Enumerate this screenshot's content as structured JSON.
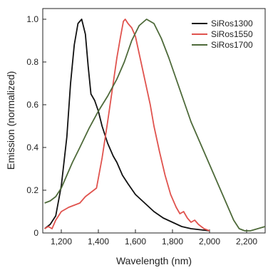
{
  "chart_data": {
    "type": "line",
    "title": "",
    "xlabel": "Wavelength (nm)",
    "ylabel": "Emission (normalized)",
    "xlim": [
      1100,
      2300
    ],
    "ylim": [
      0,
      1.05
    ],
    "grid": false,
    "legend_position": "top-right",
    "x_ticks": [
      {
        "value": 1200,
        "label": "1,200"
      },
      {
        "value": 1400,
        "label": "1,400"
      },
      {
        "value": 1600,
        "label": "1,600"
      },
      {
        "value": 1800,
        "label": "1,800"
      },
      {
        "value": 2000,
        "label": "2,000"
      },
      {
        "value": 2200,
        "label": "2,200"
      }
    ],
    "y_ticks": [
      {
        "value": 0,
        "label": "0"
      },
      {
        "value": 0.2,
        "label": "0.2"
      },
      {
        "value": 0.4,
        "label": "0.4"
      },
      {
        "value": 0.6,
        "label": "0.6"
      },
      {
        "value": 0.8,
        "label": "0.8"
      },
      {
        "value": 1.0,
        "label": "1.0"
      }
    ],
    "series": [
      {
        "name": "SiRos1300",
        "color": "#111111",
        "points": [
          [
            1110,
            0.02
          ],
          [
            1140,
            0.04
          ],
          [
            1170,
            0.08
          ],
          [
            1200,
            0.22
          ],
          [
            1230,
            0.45
          ],
          [
            1250,
            0.7
          ],
          [
            1270,
            0.88
          ],
          [
            1290,
            0.98
          ],
          [
            1310,
            1.0
          ],
          [
            1330,
            0.93
          ],
          [
            1345,
            0.78
          ],
          [
            1360,
            0.65
          ],
          [
            1380,
            0.62
          ],
          [
            1400,
            0.57
          ],
          [
            1420,
            0.5
          ],
          [
            1450,
            0.42
          ],
          [
            1480,
            0.36
          ],
          [
            1500,
            0.33
          ],
          [
            1530,
            0.27
          ],
          [
            1560,
            0.23
          ],
          [
            1600,
            0.18
          ],
          [
            1650,
            0.14
          ],
          [
            1700,
            0.1
          ],
          [
            1750,
            0.07
          ],
          [
            1800,
            0.05
          ],
          [
            1850,
            0.03
          ],
          [
            1900,
            0.02
          ],
          [
            1950,
            0.015
          ],
          [
            2000,
            0.01
          ]
        ]
      },
      {
        "name": "SiRos1550",
        "color": "#e0534e",
        "points": [
          [
            1110,
            0.02
          ],
          [
            1130,
            0.03
          ],
          [
            1150,
            0.02
          ],
          [
            1170,
            0.06
          ],
          [
            1200,
            0.1
          ],
          [
            1240,
            0.12
          ],
          [
            1270,
            0.13
          ],
          [
            1300,
            0.14
          ],
          [
            1330,
            0.17
          ],
          [
            1360,
            0.19
          ],
          [
            1390,
            0.21
          ],
          [
            1420,
            0.35
          ],
          [
            1450,
            0.52
          ],
          [
            1480,
            0.7
          ],
          [
            1500,
            0.82
          ],
          [
            1520,
            0.92
          ],
          [
            1535,
            0.99
          ],
          [
            1545,
            1.0
          ],
          [
            1560,
            0.98
          ],
          [
            1580,
            0.96
          ],
          [
            1600,
            0.92
          ],
          [
            1620,
            0.84
          ],
          [
            1650,
            0.72
          ],
          [
            1680,
            0.6
          ],
          [
            1700,
            0.5
          ],
          [
            1730,
            0.38
          ],
          [
            1760,
            0.27
          ],
          [
            1790,
            0.18
          ],
          [
            1820,
            0.12
          ],
          [
            1840,
            0.09
          ],
          [
            1860,
            0.1
          ],
          [
            1880,
            0.07
          ],
          [
            1900,
            0.05
          ],
          [
            1920,
            0.06
          ],
          [
            1940,
            0.04
          ],
          [
            1970,
            0.02
          ],
          [
            2000,
            0.01
          ]
        ]
      },
      {
        "name": "SiRos1700",
        "color": "#4e6a3a",
        "points": [
          [
            1110,
            0.14
          ],
          [
            1140,
            0.15
          ],
          [
            1170,
            0.17
          ],
          [
            1200,
            0.21
          ],
          [
            1230,
            0.27
          ],
          [
            1260,
            0.33
          ],
          [
            1300,
            0.4
          ],
          [
            1350,
            0.49
          ],
          [
            1400,
            0.57
          ],
          [
            1450,
            0.64
          ],
          [
            1500,
            0.72
          ],
          [
            1540,
            0.8
          ],
          [
            1580,
            0.9
          ],
          [
            1620,
            0.97
          ],
          [
            1660,
            1.0
          ],
          [
            1700,
            0.98
          ],
          [
            1740,
            0.91
          ],
          [
            1780,
            0.82
          ],
          [
            1820,
            0.72
          ],
          [
            1860,
            0.62
          ],
          [
            1900,
            0.52
          ],
          [
            1950,
            0.42
          ],
          [
            2000,
            0.32
          ],
          [
            2050,
            0.22
          ],
          [
            2100,
            0.12
          ],
          [
            2130,
            0.06
          ],
          [
            2160,
            0.02
          ],
          [
            2190,
            0.01
          ],
          [
            2220,
            0.01
          ],
          [
            2260,
            0.02
          ],
          [
            2300,
            0.03
          ]
        ]
      }
    ]
  }
}
